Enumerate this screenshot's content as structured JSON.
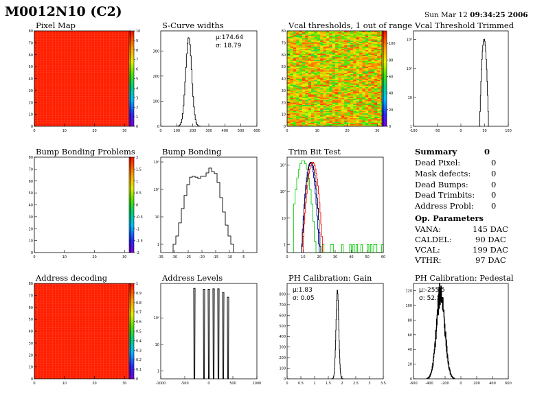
{
  "header": {
    "title": "M0012N10 (C2)",
    "date_prefix": "Sun Mar 12",
    "date_time": "09:34:25 2006"
  },
  "summary": {
    "title": "Summary",
    "total": "0",
    "rows": [
      {
        "label": "Dead Pixel:",
        "value": "0"
      },
      {
        "label": "Mask defects:",
        "value": "0"
      },
      {
        "label": "Dead Bumps:",
        "value": "0"
      },
      {
        "label": "Dead Trimbits:",
        "value": "0"
      },
      {
        "label": "Address Probl:",
        "value": "0"
      }
    ]
  },
  "op_parameters": {
    "title": "Op. Parameters",
    "rows": [
      {
        "label": "VANA:",
        "value": "145 DAC"
      },
      {
        "label": "CALDEL:",
        "value": "90 DAC"
      },
      {
        "label": "VCAL:",
        "value": "199 DAC"
      },
      {
        "label": "VTHR:",
        "value": "97 DAC"
      }
    ]
  },
  "chart_data": [
    {
      "id": "pixel-map",
      "type": "heatmap",
      "title": "Pixel Map",
      "xlim": [
        0,
        32
      ],
      "ylim": [
        0,
        80
      ],
      "nx": 32,
      "ny": 80,
      "fill": "uniform",
      "fill_color": "#ff1e00",
      "xticks": [
        "0",
        "10",
        "20",
        "30"
      ],
      "xtick_vals": [
        0,
        10,
        20,
        30
      ],
      "yticks": [
        "0",
        "10",
        "20",
        "30",
        "40",
        "50",
        "60",
        "70",
        "80"
      ],
      "ytick_vals": [
        0,
        10,
        20,
        30,
        40,
        50,
        60,
        70,
        80
      ],
      "palette": "rainbow",
      "zticks": [
        "0",
        "1",
        "2",
        "3",
        "4",
        "5",
        "6",
        "7",
        "8",
        "9",
        "10"
      ],
      "ztick_vals": [
        0,
        1,
        2,
        3,
        4,
        5,
        6,
        7,
        8,
        9,
        10
      ],
      "zlim": [
        0,
        10
      ]
    },
    {
      "id": "scurve-widths",
      "type": "line",
      "title": "S-Curve widths",
      "xlim": [
        0,
        600
      ],
      "ylim": [
        0,
        380
      ],
      "log": false,
      "xticks": [
        "0",
        "100",
        "200",
        "300",
        "400",
        "500",
        "600"
      ],
      "xtick_vals": [
        0,
        100,
        200,
        300,
        400,
        500,
        600
      ],
      "yticks": [
        "0",
        "100",
        "200",
        "300"
      ],
      "ytick_vals": [
        0,
        100,
        200,
        300
      ],
      "stats": [
        "μ:174.64",
        "σ: 18.79"
      ],
      "series": [
        {
          "color": "#000000",
          "shape": "gauss",
          "mean": 174.64,
          "sigma": 18.79,
          "peak": 355,
          "xmin": 100,
          "xmax": 250,
          "bins": 30
        }
      ]
    },
    {
      "id": "vcal-thresholds",
      "type": "heatmap",
      "title": "Vcal thresholds, 1 out of range",
      "xlim": [
        0,
        32
      ],
      "ylim": [
        0,
        80
      ],
      "nx": 32,
      "ny": 80,
      "fill": "random",
      "range": [
        55,
        108
      ],
      "xticks": [
        "0",
        "10",
        "20",
        "30"
      ],
      "xtick_vals": [
        0,
        10,
        20,
        30
      ],
      "yticks": [
        "0",
        "10",
        "20",
        "30",
        "40",
        "50",
        "60",
        "70",
        "80"
      ],
      "ytick_vals": [
        0,
        10,
        20,
        30,
        40,
        50,
        60,
        70,
        80
      ],
      "palette": "rainbow",
      "zticks": [
        "0",
        "20",
        "40",
        "60",
        "80",
        "100"
      ],
      "ztick_vals": [
        0,
        20,
        40,
        60,
        80,
        100
      ],
      "zlim": [
        0,
        115
      ]
    },
    {
      "id": "vcal-trimmed",
      "type": "line",
      "title": "Vcal Threshold Trimmed",
      "xlim": [
        -100,
        100
      ],
      "ylim": [
        1,
        2000
      ],
      "log": true,
      "xticks": [
        "-100",
        "-50",
        "0",
        "50",
        "100"
      ],
      "xtick_vals": [
        -100,
        -50,
        0,
        50,
        100
      ],
      "yticks": [
        "1",
        "10",
        "10²",
        "10³"
      ],
      "ytick_vals": [
        1,
        10,
        100,
        1000
      ],
      "series": [
        {
          "color": "#000000",
          "shape": "gauss",
          "mean": 49,
          "sigma": 2.5,
          "peak": 1050,
          "xmin": 38,
          "xmax": 60,
          "bins": 22
        }
      ]
    },
    {
      "id": "bump-problems",
      "type": "heatmap",
      "title": "Bump Bonding Problems",
      "xlim": [
        0,
        32
      ],
      "ylim": [
        0,
        80
      ],
      "nx": 32,
      "ny": 80,
      "fill": "empty",
      "xticks": [
        "0",
        "10",
        "20",
        "30"
      ],
      "xtick_vals": [
        0,
        10,
        20,
        30
      ],
      "yticks": [
        "0",
        "10",
        "20",
        "30",
        "40",
        "50",
        "60",
        "70",
        "80"
      ],
      "ytick_vals": [
        0,
        10,
        20,
        30,
        40,
        50,
        60,
        70,
        80
      ],
      "palette": "rainbow",
      "zticks": [
        "-2",
        "-1.5",
        "-1",
        "-0.5",
        "0",
        "0.5",
        "1",
        "1.5",
        "2"
      ],
      "ztick_vals": [
        -2,
        -1.5,
        -1,
        -0.5,
        0,
        0.5,
        1,
        1.5,
        2
      ],
      "zlim": [
        -2,
        2
      ]
    },
    {
      "id": "bump-bonding",
      "type": "line",
      "title": "Bump Bonding",
      "xlim": [
        -35,
        0
      ],
      "ylim": [
        0.5,
        1500
      ],
      "log": true,
      "xticks": [
        "-35",
        "-30",
        "-25",
        "-20",
        "-15",
        "-10",
        "-5"
      ],
      "xtick_vals": [
        -35,
        -30,
        -25,
        -20,
        -15,
        -10,
        -5
      ],
      "yticks": [
        "1",
        "10",
        "10²",
        "10³"
      ],
      "ytick_vals": [
        1,
        10,
        100,
        1000
      ],
      "series": [
        {
          "color": "#000000",
          "shape": "steps",
          "x0": -30.5,
          "dx": 1,
          "values": [
            1,
            2,
            6,
            20,
            60,
            150,
            280,
            300,
            280,
            250,
            300,
            300,
            400,
            600,
            450,
            380,
            180,
            50,
            15,
            5,
            2,
            1
          ]
        }
      ]
    },
    {
      "id": "trim-bit-test",
      "type": "line",
      "title": "Trim Bit Test",
      "xlim": [
        0,
        60
      ],
      "ylim": [
        0.5,
        2000
      ],
      "log": true,
      "xticks": [
        "0",
        "10",
        "20",
        "30",
        "40",
        "50",
        "60"
      ],
      "xtick_vals": [
        0,
        10,
        20,
        30,
        40,
        50,
        60
      ],
      "yticks": [
        "1",
        "10",
        "10²",
        "10³"
      ],
      "ytick_vals": [
        1,
        10,
        100,
        1000
      ],
      "series": [
        {
          "color": "#00cc00",
          "shape": "gauss",
          "mean": 10,
          "sigma": 2.0,
          "peak": 1500,
          "xmin": 4,
          "xmax": 60,
          "bins": 56,
          "floor": 1
        },
        {
          "color": "#0000cc",
          "shape": "gauss",
          "mean": 14.5,
          "sigma": 1.4,
          "peak": 1200,
          "xmin": 9,
          "xmax": 21,
          "bins": 24
        },
        {
          "color": "#000000",
          "shape": "gauss",
          "mean": 15,
          "sigma": 1.5,
          "peak": 1300,
          "xmin": 9,
          "xmax": 21,
          "bins": 24
        },
        {
          "color": "#ff0000",
          "shape": "gauss",
          "mean": 16,
          "sigma": 1.6,
          "peak": 1300,
          "xmin": 10,
          "xmax": 22,
          "bins": 24
        }
      ]
    },
    {
      "id": "address-decoding",
      "type": "heatmap",
      "title": "Address decoding",
      "xlim": [
        0,
        32
      ],
      "ylim": [
        0,
        80
      ],
      "nx": 32,
      "ny": 80,
      "fill": "uniform",
      "fill_color": "#ff1e00",
      "xticks": [
        "0",
        "10",
        "20",
        "30"
      ],
      "xtick_vals": [
        0,
        10,
        20,
        30
      ],
      "yticks": [
        "0",
        "10",
        "20",
        "30",
        "40",
        "50",
        "60",
        "70",
        "80"
      ],
      "ytick_vals": [
        0,
        10,
        20,
        30,
        40,
        50,
        60,
        70,
        80
      ],
      "palette": "rainbow",
      "zticks": [
        "0",
        "0.1",
        "0.2",
        "0.3",
        "0.4",
        "0.5",
        "0.6",
        "0.7",
        "0.8",
        "0.9",
        "1"
      ],
      "ztick_vals": [
        0,
        0.1,
        0.2,
        0.3,
        0.4,
        0.5,
        0.6,
        0.7,
        0.8,
        0.9,
        1
      ],
      "zlim": [
        0,
        1
      ]
    },
    {
      "id": "address-levels",
      "type": "line",
      "title": "Address Levels",
      "xlim": [
        -1000,
        1000
      ],
      "ylim": [
        0.5,
        2000
      ],
      "log": true,
      "xticks": [
        "-1000",
        "-500",
        "0",
        "500",
        "1000"
      ],
      "xtick_vals": [
        -1000,
        -500,
        0,
        500,
        1000
      ],
      "yticks": [
        "1",
        "10",
        "10²"
      ],
      "ytick_vals": [
        1,
        10,
        100
      ],
      "series": [
        {
          "color": "#000000",
          "shape": "spikes",
          "width": 16,
          "peaks": [
            [
              -300,
              1300
            ],
            [
              -100,
              1200
            ],
            [
              0,
              1200
            ],
            [
              100,
              1250
            ],
            [
              200,
              1250
            ],
            [
              300,
              900
            ],
            [
              400,
              600
            ]
          ]
        }
      ]
    },
    {
      "id": "ph-gain",
      "type": "line",
      "title": "PH Calibration: Gain",
      "xlim": [
        0,
        3.5
      ],
      "ylim": [
        0,
        900
      ],
      "log": false,
      "xticks": [
        "0",
        "0.5",
        "1",
        "1.5",
        "2",
        "2.5",
        "3",
        "3.5"
      ],
      "xtick_vals": [
        0,
        0.5,
        1,
        1.5,
        2,
        2.5,
        3,
        3.5
      ],
      "yticks": [
        "0",
        "100",
        "200",
        "300",
        "400",
        "500",
        "600",
        "700",
        "800"
      ],
      "ytick_vals": [
        0,
        100,
        200,
        300,
        400,
        500,
        600,
        700,
        800
      ],
      "stats": [
        "μ:1.83",
        "σ: 0.05"
      ],
      "series": [
        {
          "color": "#000000",
          "shape": "gauss",
          "mean": 1.83,
          "sigma": 0.05,
          "peak": 840,
          "xmin": 1.6,
          "xmax": 2.06,
          "bins": 46
        }
      ]
    },
    {
      "id": "ph-pedestal",
      "type": "line",
      "title": "PH Calibration: Pedestal",
      "xlim": [
        -600,
        600
      ],
      "ylim": [
        0,
        130
      ],
      "log": false,
      "xticks": [
        "-600",
        "-400",
        "-200",
        "0",
        "200",
        "400",
        "600"
      ],
      "xtick_vals": [
        -600,
        -400,
        -200,
        0,
        200,
        400,
        600
      ],
      "yticks": [
        "0",
        "20",
        "40",
        "60",
        "80",
        "100",
        "120"
      ],
      "ytick_vals": [
        0,
        20,
        40,
        60,
        80,
        100,
        120
      ],
      "stats": [
        "μ:-255.5",
        "σ: 52.5"
      ],
      "series": [
        {
          "color": "#000000",
          "shape": "gauss",
          "mean": -255.5,
          "sigma": 52.5,
          "peak": 118,
          "xmin": -430,
          "xmax": -80,
          "bins": 120,
          "jitter": true,
          "thick": true
        }
      ]
    }
  ]
}
